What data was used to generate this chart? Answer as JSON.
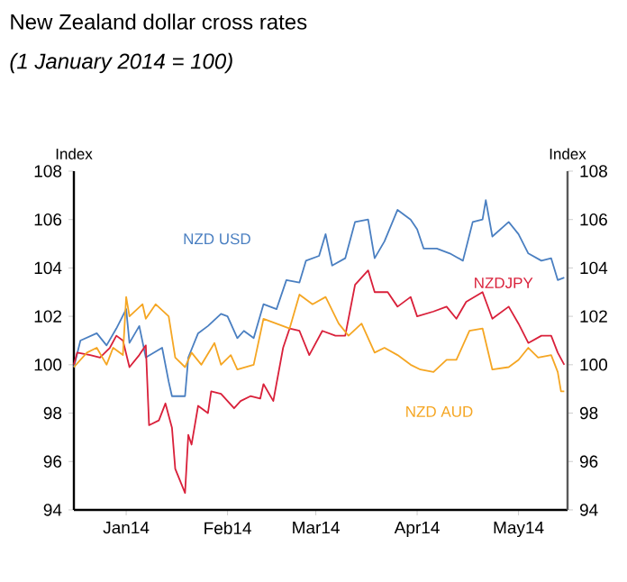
{
  "chart_data": {
    "type": "line",
    "title": "New Zealand dollar cross rates",
    "subtitle": "(1 January 2014 = 100)",
    "ylabel": "Index",
    "y2label": "Index",
    "xlim": [
      "2014-01-01",
      "2014-06-01"
    ],
    "xticks": [
      {
        "value": "2014-01-17",
        "label": "Jan14"
      },
      {
        "value": "2014-02-17",
        "label": "Feb14"
      },
      {
        "value": "2014-03-16",
        "label": "Mar14"
      },
      {
        "value": "2014-04-16",
        "label": "Apr14"
      },
      {
        "value": "2014-05-17",
        "label": "May14"
      }
    ],
    "ylim": [
      94,
      108
    ],
    "yticks": [
      94,
      96,
      98,
      100,
      102,
      104,
      106,
      108
    ],
    "y2lim": [
      94,
      108
    ],
    "y2ticks": [
      94,
      96,
      98,
      100,
      102,
      104,
      106,
      108
    ],
    "marker": "none",
    "line_style": "solid",
    "series": [
      {
        "name": "NZD USD",
        "color": "#4a7fc1",
        "x": [
          "2014-01-01",
          "2014-01-03",
          "2014-01-08",
          "2014-01-11",
          "2014-01-14",
          "2014-01-17",
          "2014-01-18",
          "2014-01-21",
          "2014-01-23",
          "2014-01-28",
          "2014-01-30",
          "2014-01-31",
          "2014-02-04",
          "2014-02-05",
          "2014-02-08",
          "2014-02-11",
          "2014-02-15",
          "2014-02-17",
          "2014-02-20",
          "2014-02-22",
          "2014-02-25",
          "2014-02-28",
          "2014-03-04",
          "2014-03-07",
          "2014-03-11",
          "2014-03-13",
          "2014-03-17",
          "2014-03-19",
          "2014-03-21",
          "2014-03-25",
          "2014-03-28",
          "2014-04-01",
          "2014-04-03",
          "2014-04-06",
          "2014-04-10",
          "2014-04-14",
          "2014-04-16",
          "2014-04-18",
          "2014-04-22",
          "2014-04-26",
          "2014-04-30",
          "2014-05-03",
          "2014-05-06",
          "2014-05-07",
          "2014-05-09",
          "2014-05-14",
          "2014-05-17",
          "2014-05-20",
          "2014-05-24",
          "2014-05-27",
          "2014-05-29",
          "2014-05-31"
        ],
        "values": [
          99.9,
          101.0,
          101.3,
          100.8,
          101.5,
          102.3,
          100.9,
          101.6,
          100.3,
          100.7,
          99.3,
          98.7,
          98.7,
          100.3,
          101.3,
          101.6,
          102.1,
          102.0,
          101.1,
          101.4,
          101.1,
          102.5,
          102.3,
          103.5,
          103.4,
          104.3,
          104.5,
          105.4,
          104.1,
          104.4,
          105.9,
          106.0,
          104.4,
          105.1,
          106.4,
          106.0,
          105.6,
          104.8,
          104.8,
          104.6,
          104.3,
          105.9,
          106.0,
          106.8,
          105.3,
          105.9,
          105.4,
          104.6,
          104.3,
          104.4,
          103.5,
          103.6
        ]
      },
      {
        "name": "NZDJPY",
        "color": "#d9203a",
        "x": [
          "2014-01-01",
          "2014-01-02",
          "2014-01-06",
          "2014-01-09",
          "2014-01-12",
          "2014-01-14",
          "2014-01-16",
          "2014-01-18",
          "2014-01-21",
          "2014-01-23",
          "2014-01-24",
          "2014-01-27",
          "2014-01-29",
          "2014-01-31",
          "2014-02-01",
          "2014-02-04",
          "2014-02-05",
          "2014-02-06",
          "2014-02-08",
          "2014-02-11",
          "2014-02-12",
          "2014-02-15",
          "2014-02-19",
          "2014-02-21",
          "2014-02-24",
          "2014-02-27",
          "2014-02-28",
          "2014-03-03",
          "2014-03-06",
          "2014-03-08",
          "2014-03-11",
          "2014-03-14",
          "2014-03-18",
          "2014-03-22",
          "2014-03-25",
          "2014-03-28",
          "2014-04-01",
          "2014-04-03",
          "2014-04-07",
          "2014-04-10",
          "2014-04-14",
          "2014-04-16",
          "2014-04-21",
          "2014-04-25",
          "2014-04-28",
          "2014-05-01",
          "2014-05-06",
          "2014-05-09",
          "2014-05-14",
          "2014-05-17",
          "2014-05-20",
          "2014-05-24",
          "2014-05-27",
          "2014-05-29",
          "2014-05-31"
        ],
        "values": [
          100.0,
          100.5,
          100.4,
          100.3,
          100.7,
          101.2,
          101.0,
          99.9,
          100.4,
          100.8,
          97.5,
          97.7,
          98.4,
          97.4,
          95.7,
          94.7,
          97.1,
          96.7,
          98.3,
          98.0,
          98.9,
          98.8,
          98.2,
          98.5,
          98.7,
          98.6,
          99.2,
          98.5,
          100.7,
          101.5,
          101.4,
          100.4,
          101.4,
          101.2,
          101.2,
          103.3,
          103.9,
          103.0,
          103.0,
          102.4,
          102.8,
          102.0,
          102.2,
          102.4,
          101.9,
          102.6,
          103.0,
          101.9,
          102.4,
          101.7,
          100.9,
          101.2,
          101.2,
          100.5,
          100.0
        ]
      },
      {
        "name": "NZD AUD",
        "color": "#f5a623",
        "x": [
          "2014-01-01",
          "2014-01-05",
          "2014-01-08",
          "2014-01-11",
          "2014-01-13",
          "2014-01-16",
          "2014-01-17",
          "2014-01-18",
          "2014-01-22",
          "2014-01-23",
          "2014-01-26",
          "2014-01-30",
          "2014-02-01",
          "2014-02-04",
          "2014-02-06",
          "2014-02-09",
          "2014-02-13",
          "2014-02-15",
          "2014-02-18",
          "2014-02-20",
          "2014-02-25",
          "2014-02-28",
          "2014-03-04",
          "2014-03-08",
          "2014-03-11",
          "2014-03-15",
          "2014-03-19",
          "2014-03-23",
          "2014-03-26",
          "2014-03-30",
          "2014-04-03",
          "2014-04-06",
          "2014-04-10",
          "2014-04-14",
          "2014-04-17",
          "2014-04-21",
          "2014-04-25",
          "2014-04-28",
          "2014-05-02",
          "2014-05-06",
          "2014-05-09",
          "2014-05-14",
          "2014-05-17",
          "2014-05-20",
          "2014-05-23",
          "2014-05-27",
          "2014-05-29",
          "2014-05-30",
          "2014-05-31"
        ],
        "values": [
          99.9,
          100.5,
          100.7,
          100.0,
          100.7,
          100.4,
          102.8,
          102.0,
          102.5,
          101.9,
          102.5,
          102.0,
          100.3,
          99.9,
          100.5,
          100.0,
          100.9,
          100.0,
          100.4,
          99.8,
          100.0,
          101.9,
          101.7,
          101.5,
          102.9,
          102.5,
          102.8,
          101.7,
          101.2,
          101.7,
          100.5,
          100.7,
          100.4,
          100.0,
          99.8,
          99.7,
          100.2,
          100.2,
          101.4,
          101.5,
          99.8,
          99.9,
          100.2,
          100.7,
          100.3,
          100.4,
          99.7,
          98.9,
          98.9
        ]
      }
    ]
  }
}
